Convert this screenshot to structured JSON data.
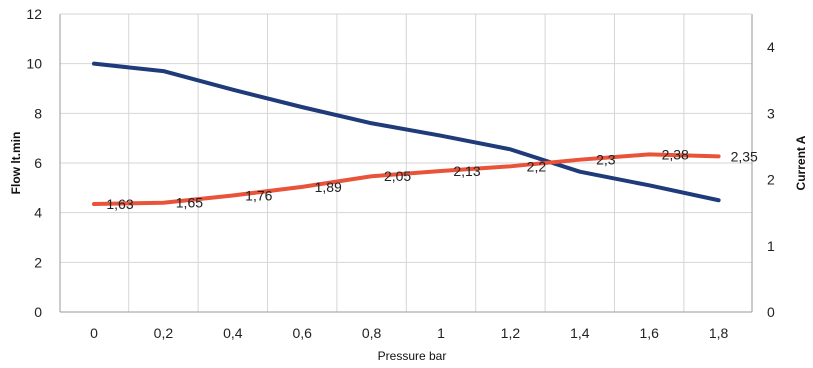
{
  "chart_data": {
    "type": "line",
    "xlabel": "Pressure bar",
    "ylabel": "Flow lt.min",
    "y2label": "Current A",
    "x": [
      0,
      0.2,
      0.4,
      0.6,
      0.8,
      1.0,
      1.2,
      1.4,
      1.6,
      1.8
    ],
    "x_tick_labels": [
      "0",
      "0,2",
      "0,4",
      "0,6",
      "0,8",
      "1",
      "1,2",
      "1,4",
      "1,6",
      "1,8"
    ],
    "ylim": [
      0,
      12
    ],
    "y_ticks": [
      0,
      2,
      4,
      6,
      8,
      10,
      12
    ],
    "y_tick_labels": [
      "0",
      "2",
      "4",
      "6",
      "8",
      "10",
      "12"
    ],
    "y2lim": [
      0,
      4.5
    ],
    "y2_ticks": [
      0,
      1,
      2,
      3,
      4
    ],
    "y2_tick_labels": [
      "0",
      "1",
      "2",
      "3",
      "4"
    ],
    "grid": true,
    "series": [
      {
        "axis": "left",
        "color": "#1f3b7a",
        "values": [
          10.0,
          9.7,
          8.95,
          8.25,
          7.6,
          7.1,
          6.55,
          5.65,
          5.1,
          4.5
        ]
      },
      {
        "axis": "right",
        "color": "#e8533a",
        "values": [
          1.63,
          1.65,
          1.76,
          1.89,
          2.05,
          2.13,
          2.2,
          2.3,
          2.38,
          2.35
        ],
        "data_labels": [
          "1,63",
          "1,65",
          "1,76",
          "1,89",
          "2,05",
          "2,13",
          "2,2",
          "2,3",
          "2,38",
          "2,35"
        ]
      }
    ]
  }
}
